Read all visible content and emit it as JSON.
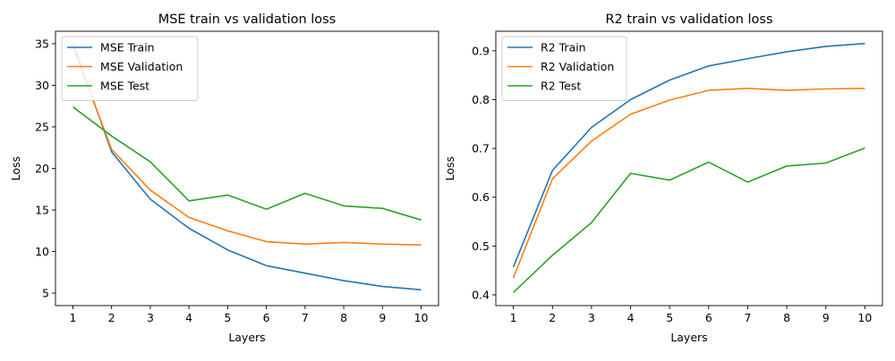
{
  "chart_data": [
    {
      "type": "line",
      "title": "MSE train vs validation loss",
      "xlabel": "Layers",
      "ylabel": "Loss",
      "x": [
        1,
        2,
        3,
        4,
        5,
        6,
        7,
        8,
        9,
        10
      ],
      "xlim": [
        0.55,
        10.45
      ],
      "ylim": [
        3.5,
        36.5
      ],
      "yticks": [
        5,
        10,
        15,
        20,
        25,
        30,
        35
      ],
      "legend": "top-left",
      "grid": false,
      "series": [
        {
          "name": "MSE Train",
          "color": "#1f77b4",
          "values": [
            35.1,
            22.0,
            16.3,
            12.8,
            10.2,
            8.3,
            7.4,
            6.5,
            5.8,
            5.4
          ]
        },
        {
          "name": "MSE Validation",
          "color": "#ff7f0e",
          "values": [
            34.6,
            22.3,
            17.4,
            14.1,
            12.5,
            11.2,
            10.9,
            11.1,
            10.9,
            10.8
          ]
        },
        {
          "name": "MSE Test",
          "color": "#2ca02c",
          "values": [
            27.4,
            23.9,
            20.8,
            16.1,
            16.8,
            15.1,
            17.0,
            15.5,
            15.2,
            13.8
          ]
        }
      ]
    },
    {
      "type": "line",
      "title": "R2 train vs validation loss",
      "xlabel": "Layers",
      "ylabel": "Loss",
      "x": [
        1,
        2,
        3,
        4,
        5,
        6,
        7,
        8,
        9,
        10
      ],
      "xlim": [
        0.55,
        10.45
      ],
      "ylim": [
        0.378,
        0.94
      ],
      "yticks": [
        0.4,
        0.5,
        0.6,
        0.7,
        0.8,
        0.9
      ],
      "legend": "top-left",
      "grid": false,
      "series": [
        {
          "name": "R2 Train",
          "color": "#1f77b4",
          "values": [
            0.457,
            0.655,
            0.743,
            0.8,
            0.84,
            0.869,
            0.884,
            0.898,
            0.909,
            0.915
          ]
        },
        {
          "name": "R2 Validation",
          "color": "#ff7f0e",
          "values": [
            0.435,
            0.638,
            0.715,
            0.77,
            0.799,
            0.819,
            0.823,
            0.819,
            0.822,
            0.823
          ]
        },
        {
          "name": "R2 Test",
          "color": "#2ca02c",
          "values": [
            0.405,
            0.481,
            0.548,
            0.649,
            0.635,
            0.672,
            0.631,
            0.664,
            0.67,
            0.701
          ]
        }
      ]
    }
  ]
}
